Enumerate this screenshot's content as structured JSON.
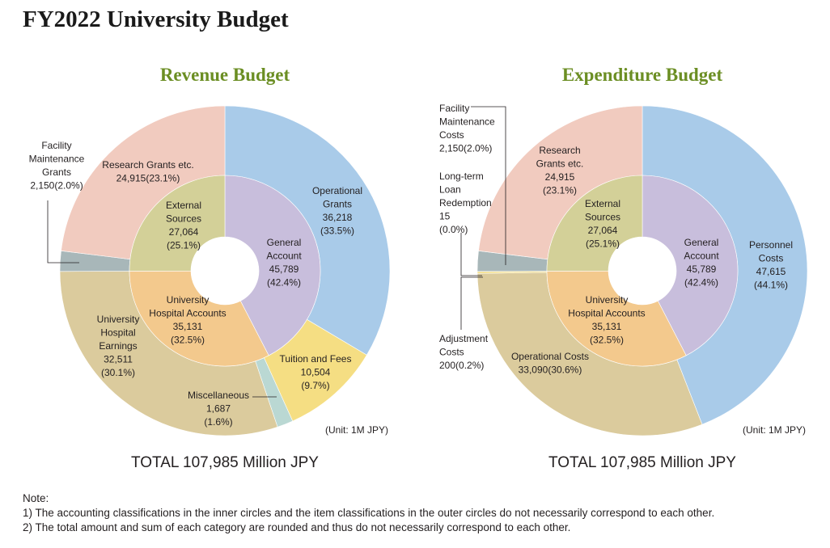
{
  "title": "FY2022 University Budget",
  "chart_data": [
    {
      "type": "pie",
      "subtitle": "Revenue Budget",
      "unit": "(Unit: 1M JPY)",
      "total": "TOTAL 107,985 Million JPY",
      "inner": [
        {
          "key": "general",
          "value": 45789,
          "lines": [
            "General",
            "Account",
            "45,789",
            "(42.4%)"
          ],
          "color": "#c8bedc"
        },
        {
          "key": "hospital",
          "value": 35131,
          "lines": [
            "University",
            "Hospital Accounts",
            "35,131",
            "(32.5%)"
          ],
          "color": "#f3c98d"
        },
        {
          "key": "external",
          "value": 27064,
          "lines": [
            "External",
            "Sources",
            "27,064",
            "(25.1%)"
          ],
          "color": "#d3d098"
        }
      ],
      "outer": [
        {
          "key": "operational-grants",
          "value": 36218,
          "lines": [
            "Operational",
            "Grants",
            "36,218",
            "(33.5%)"
          ],
          "color": "#a9cbe9"
        },
        {
          "key": "tuition-fees",
          "value": 10504,
          "lines": [
            "Tuition and Fees",
            "10,504",
            "(9.7%)"
          ],
          "color": "#f5de83"
        },
        {
          "key": "miscellaneous",
          "value": 1687,
          "lines": [
            "Miscellaneous",
            "1,687",
            "(1.6%)"
          ],
          "color": "#bad8d3"
        },
        {
          "key": "hospital-earnings",
          "value": 32511,
          "lines": [
            "University",
            "Hospital",
            "Earnings",
            "32,511",
            "(30.1%)"
          ],
          "color": "#dbcb9d"
        },
        {
          "key": "facility-grants",
          "value": 2150,
          "lines": [
            "Facility",
            "Maintenance",
            "Grants",
            "2,150(2.0%)"
          ],
          "color": "#a8b7b9"
        },
        {
          "key": "research-grants",
          "value": 24915,
          "lines": [
            "Research Grants etc.",
            "24,915(23.1%)"
          ],
          "color": "#f1cbbf"
        }
      ]
    },
    {
      "type": "pie",
      "subtitle": "Expenditure Budget",
      "unit": "(Unit: 1M JPY)",
      "total": "TOTAL 107,985 Million JPY",
      "inner": [
        {
          "key": "general",
          "value": 45789,
          "lines": [
            "General",
            "Account",
            "45,789",
            "(42.4%)"
          ],
          "color": "#c8bedc"
        },
        {
          "key": "hospital",
          "value": 35131,
          "lines": [
            "University",
            "Hospital Accounts",
            "35,131",
            "(32.5%)"
          ],
          "color": "#f3c98d"
        },
        {
          "key": "external",
          "value": 27064,
          "lines": [
            "External",
            "Sources",
            "27,064",
            "(25.1%)"
          ],
          "color": "#d3d098"
        }
      ],
      "outer": [
        {
          "key": "personnel-costs",
          "value": 47615,
          "lines": [
            "Personnel",
            "Costs",
            "47,615",
            "(44.1%)"
          ],
          "color": "#a9cbe9"
        },
        {
          "key": "operational-costs",
          "value": 33090,
          "lines": [
            "Operational Costs",
            "33,090(30.6%)"
          ],
          "color": "#dbcb9d"
        },
        {
          "key": "adjustment-costs",
          "value": 200,
          "lines": [
            "Adjustment",
            "Costs",
            "200(0.2%)"
          ],
          "color": "#f5de83"
        },
        {
          "key": "loan-redemption",
          "value": 15,
          "lines": [
            "Long-term",
            "Loan",
            "Redemption",
            "15",
            "(0.0%)"
          ],
          "color": "#bad8d3"
        },
        {
          "key": "facility-costs",
          "value": 2150,
          "lines": [
            "Facility",
            "Maintenance",
            "Costs",
            "2,150(2.0%)"
          ],
          "color": "#a8b7b9"
        },
        {
          "key": "research-grants",
          "value": 24915,
          "lines": [
            "Research",
            "Grants etc.",
            "24,915",
            "(23.1%)"
          ],
          "color": "#f1cbbf"
        }
      ]
    }
  ],
  "notes": {
    "heading": "Note:",
    "items": [
      "1) The accounting classifications in the inner circles and the item classifications in the outer circles do not necessarily correspond to each other.",
      "2) The total amount and sum of each category are rounded and thus do not necessarily correspond to each other."
    ]
  }
}
